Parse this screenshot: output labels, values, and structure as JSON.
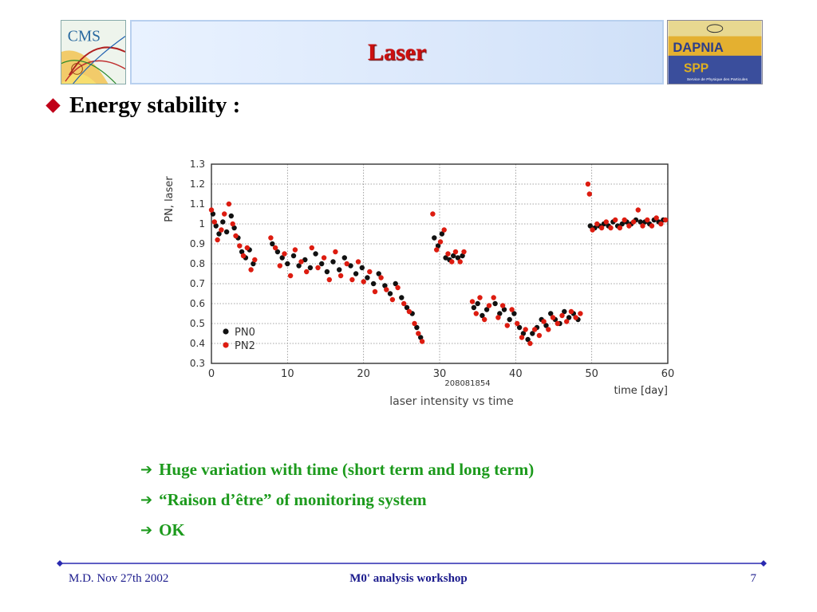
{
  "slide": {
    "title": "Laser",
    "bullet": "Energy stability :",
    "notes": [
      "Huge variation with time (short term and long term)",
      "“Raison d’être” of monitoring system",
      "OK"
    ],
    "footer": {
      "left": "M.D. Nov 27th 2002",
      "center": "M0' analysis workshop",
      "right": "7"
    },
    "logos": {
      "left_text": "CMS",
      "right_text": "DAPNIA",
      "right_sub": "SPP",
      "right_caption": "Service de Physique des Particules"
    }
  },
  "colors": {
    "title": "#cc1010",
    "bullet": "#c00018",
    "notes": "#1c9a1c",
    "footer": "#1a1a8c",
    "pn0": "#111111",
    "pn2": "#dd1c10"
  },
  "chart_data": {
    "type": "scatter",
    "title": "",
    "ylabel": "PN, laser",
    "xlabel": "time [day]",
    "caption": "laser intensity vs time",
    "run_label": "208081854",
    "xlim": [
      0,
      60
    ],
    "ylim": [
      0.3,
      1.3
    ],
    "xticks": [
      0,
      10,
      20,
      30,
      40,
      50,
      60
    ],
    "yticks": [
      0.3,
      0.4,
      0.5,
      0.6,
      0.7,
      0.8,
      0.9,
      1,
      1.1,
      1.2,
      1.3
    ],
    "grid": true,
    "legend_position": "bottom-left",
    "series": [
      {
        "name": "PN0",
        "color": "#111111",
        "points": [
          [
            0.2,
            1.05
          ],
          [
            0.6,
            0.99
          ],
          [
            1.0,
            0.95
          ],
          [
            1.5,
            1.01
          ],
          [
            2.0,
            0.96
          ],
          [
            2.6,
            1.04
          ],
          [
            3.0,
            0.98
          ],
          [
            3.5,
            0.93
          ],
          [
            4.0,
            0.86
          ],
          [
            4.5,
            0.83
          ],
          [
            5.0,
            0.87
          ],
          [
            5.5,
            0.8
          ],
          [
            8.0,
            0.9
          ],
          [
            8.7,
            0.86
          ],
          [
            9.3,
            0.83
          ],
          [
            10.0,
            0.8
          ],
          [
            10.8,
            0.84
          ],
          [
            11.5,
            0.79
          ],
          [
            12.3,
            0.82
          ],
          [
            13.0,
            0.78
          ],
          [
            13.7,
            0.85
          ],
          [
            14.5,
            0.8
          ],
          [
            15.2,
            0.76
          ],
          [
            16.0,
            0.81
          ],
          [
            16.8,
            0.77
          ],
          [
            17.5,
            0.83
          ],
          [
            18.3,
            0.79
          ],
          [
            19.0,
            0.75
          ],
          [
            19.8,
            0.78
          ],
          [
            20.5,
            0.73
          ],
          [
            21.3,
            0.7
          ],
          [
            22.0,
            0.75
          ],
          [
            22.8,
            0.69
          ],
          [
            23.5,
            0.65
          ],
          [
            24.2,
            0.7
          ],
          [
            25.0,
            0.63
          ],
          [
            25.7,
            0.58
          ],
          [
            26.4,
            0.55
          ],
          [
            27.0,
            0.48
          ],
          [
            27.5,
            0.43
          ],
          [
            29.3,
            0.93
          ],
          [
            29.8,
            0.89
          ],
          [
            30.3,
            0.95
          ],
          [
            30.8,
            0.83
          ],
          [
            31.3,
            0.82
          ],
          [
            31.8,
            0.84
          ],
          [
            32.4,
            0.83
          ],
          [
            33.0,
            0.84
          ],
          [
            34.5,
            0.58
          ],
          [
            35.0,
            0.6
          ],
          [
            35.6,
            0.54
          ],
          [
            36.2,
            0.57
          ],
          [
            37.3,
            0.6
          ],
          [
            37.9,
            0.55
          ],
          [
            38.5,
            0.57
          ],
          [
            39.2,
            0.52
          ],
          [
            39.8,
            0.55
          ],
          [
            40.5,
            0.48
          ],
          [
            41.0,
            0.45
          ],
          [
            41.6,
            0.42
          ],
          [
            42.2,
            0.45
          ],
          [
            42.8,
            0.48
          ],
          [
            43.4,
            0.52
          ],
          [
            44.0,
            0.49
          ],
          [
            44.6,
            0.55
          ],
          [
            45.2,
            0.52
          ],
          [
            45.8,
            0.5
          ],
          [
            46.4,
            0.56
          ],
          [
            47.0,
            0.53
          ],
          [
            47.6,
            0.55
          ],
          [
            48.2,
            0.52
          ],
          [
            49.8,
            0.99
          ],
          [
            50.4,
            0.98
          ],
          [
            51.0,
            0.99
          ],
          [
            51.6,
            1.0
          ],
          [
            52.2,
            0.99
          ],
          [
            52.8,
            1.01
          ],
          [
            53.4,
            0.99
          ],
          [
            54.0,
            1.0
          ],
          [
            54.6,
            1.01
          ],
          [
            55.2,
            1.0
          ],
          [
            55.8,
            1.02
          ],
          [
            56.4,
            1.01
          ],
          [
            57.0,
            1.01
          ],
          [
            57.6,
            1.0
          ],
          [
            58.2,
            1.02
          ],
          [
            58.8,
            1.01
          ],
          [
            59.4,
            1.02
          ]
        ]
      },
      {
        "name": "PN2",
        "color": "#dd1c10",
        "points": [
          [
            0.0,
            1.07
          ],
          [
            0.4,
            1.01
          ],
          [
            0.8,
            0.92
          ],
          [
            1.3,
            0.97
          ],
          [
            1.7,
            1.05
          ],
          [
            2.3,
            1.1
          ],
          [
            2.8,
            1.0
          ],
          [
            3.2,
            0.94
          ],
          [
            3.7,
            0.89
          ],
          [
            4.2,
            0.84
          ],
          [
            4.7,
            0.88
          ],
          [
            5.2,
            0.77
          ],
          [
            5.7,
            0.82
          ],
          [
            7.8,
            0.93
          ],
          [
            8.4,
            0.88
          ],
          [
            9.0,
            0.79
          ],
          [
            9.6,
            0.85
          ],
          [
            10.4,
            0.74
          ],
          [
            11.0,
            0.87
          ],
          [
            11.8,
            0.81
          ],
          [
            12.5,
            0.76
          ],
          [
            13.2,
            0.88
          ],
          [
            14.0,
            0.78
          ],
          [
            14.8,
            0.83
          ],
          [
            15.5,
            0.72
          ],
          [
            16.3,
            0.86
          ],
          [
            17.0,
            0.74
          ],
          [
            17.8,
            0.8
          ],
          [
            18.5,
            0.72
          ],
          [
            19.3,
            0.81
          ],
          [
            20.0,
            0.71
          ],
          [
            20.8,
            0.76
          ],
          [
            21.5,
            0.66
          ],
          [
            22.3,
            0.73
          ],
          [
            23.0,
            0.67
          ],
          [
            23.8,
            0.62
          ],
          [
            24.5,
            0.68
          ],
          [
            25.3,
            0.6
          ],
          [
            26.0,
            0.56
          ],
          [
            26.7,
            0.5
          ],
          [
            27.2,
            0.45
          ],
          [
            27.7,
            0.41
          ],
          [
            29.1,
            1.05
          ],
          [
            29.6,
            0.87
          ],
          [
            30.1,
            0.91
          ],
          [
            30.6,
            0.97
          ],
          [
            31.1,
            0.85
          ],
          [
            31.6,
            0.81
          ],
          [
            32.1,
            0.86
          ],
          [
            32.7,
            0.81
          ],
          [
            33.2,
            0.86
          ],
          [
            34.3,
            0.61
          ],
          [
            34.8,
            0.55
          ],
          [
            35.3,
            0.63
          ],
          [
            35.9,
            0.52
          ],
          [
            36.5,
            0.59
          ],
          [
            37.1,
            0.63
          ],
          [
            37.7,
            0.53
          ],
          [
            38.3,
            0.59
          ],
          [
            38.9,
            0.49
          ],
          [
            39.5,
            0.57
          ],
          [
            40.2,
            0.5
          ],
          [
            40.8,
            0.43
          ],
          [
            41.3,
            0.47
          ],
          [
            41.9,
            0.4
          ],
          [
            42.5,
            0.47
          ],
          [
            43.1,
            0.44
          ],
          [
            43.7,
            0.51
          ],
          [
            44.3,
            0.47
          ],
          [
            44.9,
            0.53
          ],
          [
            45.5,
            0.5
          ],
          [
            46.1,
            0.54
          ],
          [
            46.7,
            0.51
          ],
          [
            47.3,
            0.56
          ],
          [
            47.9,
            0.53
          ],
          [
            48.5,
            0.55
          ],
          [
            49.5,
            1.2
          ],
          [
            49.7,
            1.15
          ],
          [
            50.1,
            0.97
          ],
          [
            50.7,
            1.0
          ],
          [
            51.3,
            0.98
          ],
          [
            51.9,
            1.01
          ],
          [
            52.5,
            0.98
          ],
          [
            53.1,
            1.02
          ],
          [
            53.7,
            0.98
          ],
          [
            54.3,
            1.02
          ],
          [
            54.9,
            0.99
          ],
          [
            55.5,
            1.01
          ],
          [
            56.1,
            1.07
          ],
          [
            56.7,
            0.99
          ],
          [
            57.3,
            1.02
          ],
          [
            57.9,
            0.99
          ],
          [
            58.5,
            1.03
          ],
          [
            59.1,
            1.0
          ],
          [
            59.7,
            1.02
          ]
        ]
      }
    ]
  }
}
